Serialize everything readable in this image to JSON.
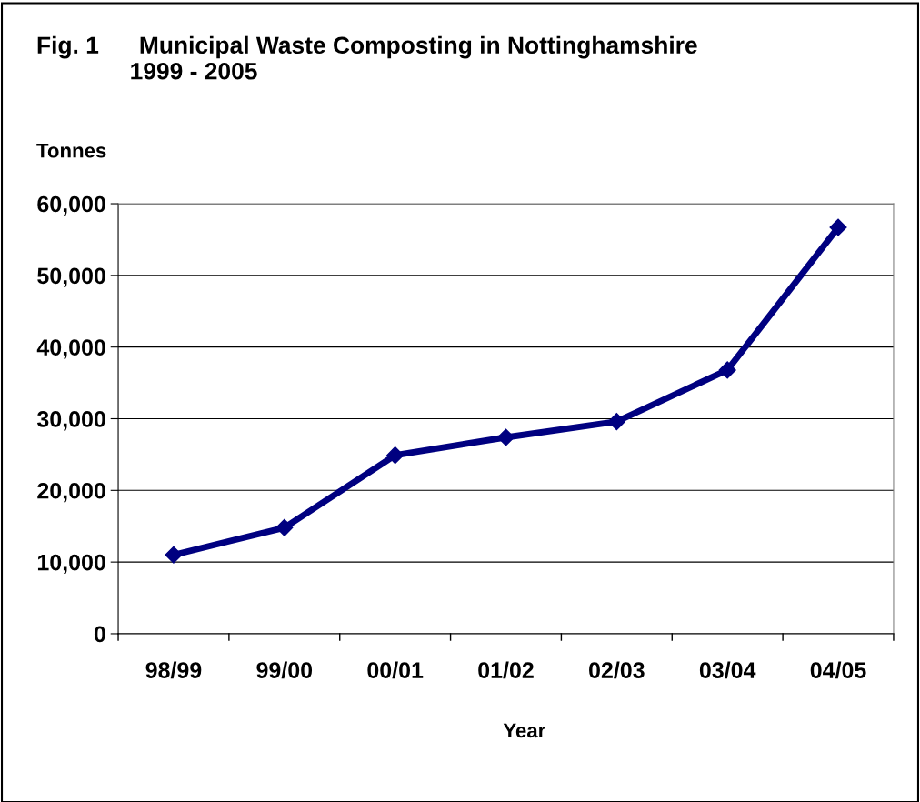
{
  "chart_data": {
    "type": "line",
    "title": "Fig. 1      Municipal Waste Composting in Nottinghamshire\n              1999 - 2005",
    "ylabel": "Tonnes",
    "xlabel": "Year",
    "categories": [
      "98/99",
      "99/00",
      "00/01",
      "01/02",
      "02/03",
      "03/04",
      "04/05"
    ],
    "series": [
      {
        "color": "#000080",
        "values": [
          11000,
          14800,
          24900,
          27400,
          29600,
          36800,
          56700
        ]
      }
    ],
    "ylim": [
      0,
      60000
    ],
    "yticks": [
      0,
      {
        "value": 10000,
        "label": "10,000"
      },
      {
        "value": 20000,
        "label": "20,000"
      },
      {
        "value": 30000,
        "label": "30,000"
      },
      {
        "value": 40000,
        "label": "40,000"
      },
      {
        "value": 50000,
        "label": "50,000"
      },
      {
        "value": 60000,
        "label": "60,000"
      }
    ],
    "grid": "y",
    "legend": false,
    "marker": "diamond",
    "line_style": "solid"
  }
}
